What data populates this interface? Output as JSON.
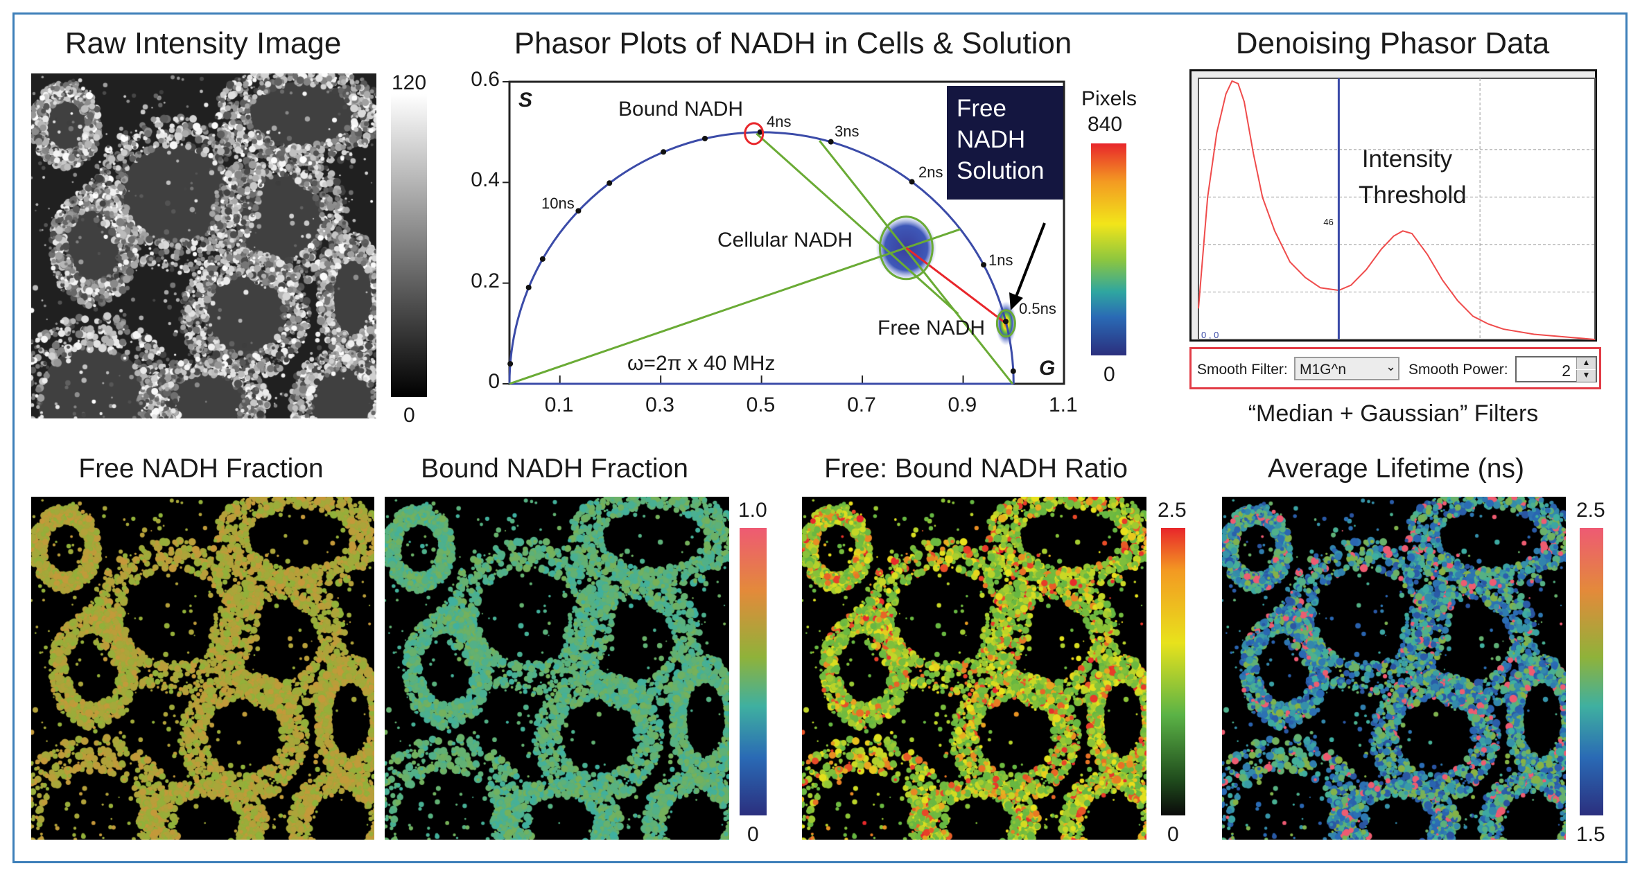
{
  "titles": {
    "raw": "Raw Intensity Image",
    "phasor": "Phasor Plots of NADH in Cells & Solution",
    "denoise": "Denoising Phasor Data",
    "free_fraction": "Free NADH Fraction",
    "bound_fraction": "Bound NADH Fraction",
    "ratio": "Free: Bound NADH Ratio",
    "lifetime": "Average Lifetime (ns)"
  },
  "raw_colorbar": {
    "max": "120",
    "min": "0"
  },
  "pixels_colorbar": {
    "label": "Pixels",
    "max": "840",
    "min": "0"
  },
  "fraction_colorbar": {
    "max": "1.0",
    "min": "0"
  },
  "ratio_colorbar": {
    "max": "2.5",
    "min": "0"
  },
  "lifetime_colorbar": {
    "max": "2.5",
    "min": "1.5"
  },
  "colors": {
    "frame": "#3d7fb9",
    "semicircle": "#3b4ba8",
    "fit_line": "#6aab35",
    "red_line": "#e8262b",
    "box": "#141640"
  },
  "chart_data": [
    {
      "type": "scatter",
      "title": "Phasor Plots of NADH in Cells & Solution",
      "xlabel": "G",
      "ylabel": "S",
      "xlim": [
        0,
        1.1
      ],
      "ylim": [
        0,
        0.6
      ],
      "xticks": [
        "0.1",
        "0.3",
        "0.5",
        "0.7",
        "0.9",
        "1.1"
      ],
      "yticks": [
        "0",
        "0.2",
        "0.4",
        "0.6"
      ],
      "grid": false,
      "frequency_label": "ω=2π x 40 MHz",
      "lifetime_markers_ns": [
        0.1,
        0.5,
        1,
        2,
        3,
        4,
        5,
        6,
        8,
        10,
        15,
        20,
        100
      ],
      "lifetime_labels": [
        "0.5ns",
        "1ns",
        "2ns",
        "3ns",
        "4ns",
        "10ns"
      ],
      "annotations": {
        "bound": "Bound NADH",
        "cellular": "Cellular NADH",
        "free": "Free NADH",
        "solution_box": [
          "Free",
          "NADH",
          "Solution"
        ]
      },
      "clusters": [
        {
          "name": "Cellular NADH",
          "g": 0.787,
          "s": 0.27
        },
        {
          "name": "Free NADH Solution",
          "g": 0.985,
          "s": 0.12
        }
      ],
      "bound_point": {
        "g": 0.485,
        "s": 0.497
      },
      "lines": [
        {
          "color": "green",
          "from": [
            0.49,
            0.497
          ],
          "to": [
            0.89,
            0.139
          ]
        },
        {
          "color": "green",
          "from": [
            0.615,
            0.483
          ],
          "to": [
            0.998,
            0.0
          ]
        },
        {
          "color": "green",
          "from": [
            0,
            0
          ],
          "to": [
            0.894,
            0.307
          ]
        },
        {
          "color": "red",
          "from": [
            0.787,
            0.27
          ],
          "to": [
            0.985,
            0.12
          ]
        }
      ]
    },
    {
      "type": "line",
      "title": "Denoising Phasor Data",
      "origin_label": "0 , 0",
      "threshold": 46,
      "threshold_label": "46",
      "annotation": [
        "Intensity",
        "Threshold"
      ],
      "xlim": [
        0,
        130
      ],
      "ylim": [
        0,
        1
      ],
      "x": [
        0,
        3,
        6,
        9,
        11,
        13,
        15,
        18,
        21,
        25,
        30,
        35,
        40,
        46,
        50,
        55,
        60,
        64,
        67,
        70,
        75,
        80,
        85,
        90,
        95,
        100,
        110,
        120,
        130
      ],
      "values": [
        0.12,
        0.55,
        0.8,
        0.95,
        1.0,
        0.99,
        0.92,
        0.72,
        0.55,
        0.42,
        0.3,
        0.24,
        0.2,
        0.19,
        0.21,
        0.27,
        0.35,
        0.4,
        0.42,
        0.41,
        0.33,
        0.23,
        0.15,
        0.09,
        0.06,
        0.04,
        0.02,
        0.01,
        0.0
      ]
    }
  ],
  "controls": {
    "filter_label": "Smooth Filter:",
    "filter_value": "M1G^n",
    "power_label": "Smooth Power:",
    "power_value": "2"
  },
  "caption": "“Median + Gaussian” Filters"
}
